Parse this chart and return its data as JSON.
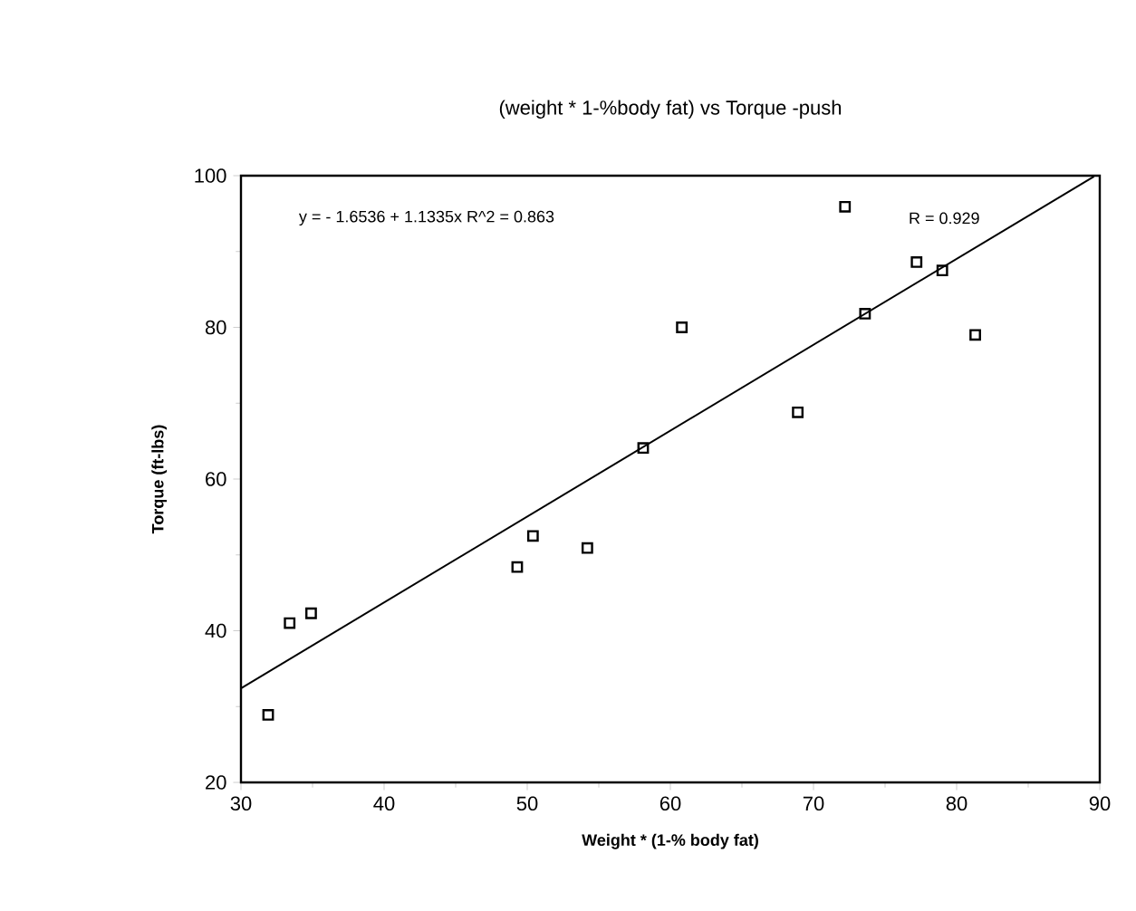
{
  "chart_data": {
    "type": "scatter",
    "title": "(weight * 1-%body fat) vs Torque -push",
    "xlabel": "Weight * (1-% body fat)",
    "ylabel": "Torque (ft-lbs)",
    "xlim": [
      30,
      90
    ],
    "ylim": [
      20,
      100
    ],
    "xticks": [
      30,
      40,
      50,
      60,
      70,
      80,
      90
    ],
    "yticks": [
      20,
      40,
      60,
      80,
      100
    ],
    "series": [
      {
        "color": "#000000",
        "marker": "square",
        "x": [
          31.9,
          33.4,
          34.9,
          49.3,
          50.4,
          54.2,
          58.1,
          60.8,
          68.9,
          72.2,
          73.6,
          77.2,
          79.0,
          81.3
        ],
        "values": [
          28.9,
          41.0,
          42.3,
          48.4,
          52.5,
          50.9,
          64.1,
          80.0,
          68.8,
          95.9,
          81.8,
          88.6,
          87.5,
          79.0
        ]
      },
      {
        "type": "line",
        "color": "#000000",
        "marker": "none",
        "x": [
          30,
          89.6
        ],
        "values": [
          32.4,
          99.9
        ]
      }
    ],
    "annotations": [
      "y = - 1.6536 + 1.1335x  R^2 = 0.863",
      "R = 0.929"
    ]
  }
}
